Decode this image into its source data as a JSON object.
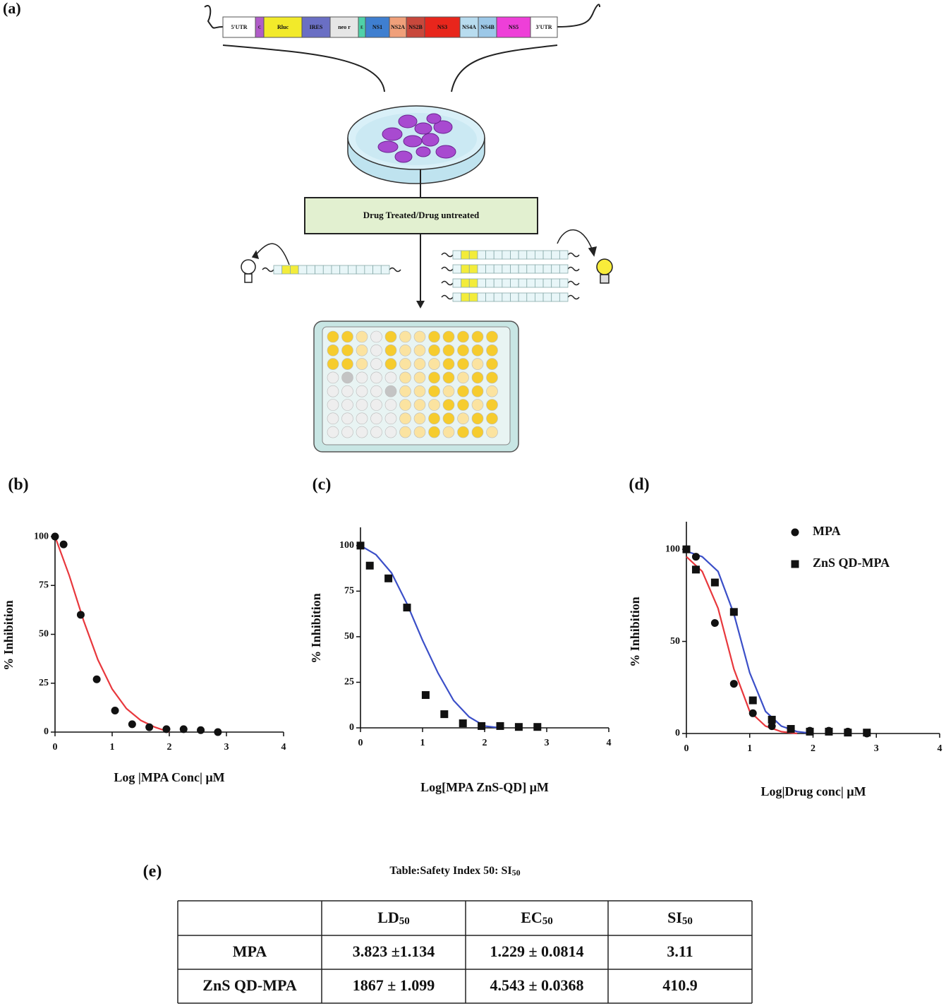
{
  "diagram": {
    "label": "(a)",
    "segments": [
      {
        "label": "5'UTR",
        "color": "#ffffff"
      },
      {
        "label": "C",
        "color": "#b05cc8"
      },
      {
        "label": "Rluc",
        "color": "#f2ea2a"
      },
      {
        "label": "IRES",
        "color": "#6a6fc4"
      },
      {
        "label": "neo r",
        "color": "#e6e6e6"
      },
      {
        "label": "E",
        "color": "#4fd1a8"
      },
      {
        "label": "NS1",
        "color": "#3f7fd0"
      },
      {
        "label": "NS2A",
        "color": "#f0a07a"
      },
      {
        "label": "NS2B",
        "color": "#c8483c"
      },
      {
        "label": "NS3",
        "color": "#e8261c"
      },
      {
        "label": "NS4A",
        "color": "#b8dcef"
      },
      {
        "label": "NS4B",
        "color": "#9cc8e8"
      },
      {
        "label": "NS5",
        "color": "#ee3fd8"
      },
      {
        "label": "3'UTR",
        "color": "#ffffff"
      }
    ],
    "box": "Drug Treated/Drug untreated"
  },
  "chart_data": [
    {
      "type": "scatter",
      "label": "(b)",
      "xlabel": "Log |MPA Conc| μM",
      "ylabel": "% Inhibition",
      "x": [
        0,
        0.15,
        0.45,
        0.73,
        1.05,
        1.35,
        1.65,
        1.95,
        2.25,
        2.55,
        2.85
      ],
      "series": [
        {
          "color": "#111111",
          "marker": "circle",
          "values": [
            100,
            96,
            60,
            27,
            11,
            4,
            2.5,
            1.5,
            1.5,
            1,
            0
          ]
        }
      ],
      "fits": [
        {
          "color": "#e8383d",
          "x": [
            0,
            0.25,
            0.5,
            0.75,
            1,
            1.25,
            1.5,
            1.75,
            2
          ],
          "values": [
            100,
            80,
            57,
            37,
            22,
            12,
            6,
            2.5,
            0
          ]
        }
      ],
      "xlim": [
        0,
        4
      ],
      "xticks": [
        0,
        1,
        2,
        3,
        4
      ],
      "ylim": [
        0,
        102
      ],
      "yticks": [
        0,
        25,
        50,
        75,
        100
      ]
    },
    {
      "type": "scatter",
      "label": "(c)",
      "xlabel": "Log[MPA ZnS-QD] μM",
      "ylabel": "% Inhibition",
      "x": [
        0,
        0.15,
        0.45,
        0.75,
        1.05,
        1.35,
        1.65,
        1.95,
        2.25,
        2.55,
        2.85
      ],
      "series": [
        {
          "color": "#111111",
          "marker": "square",
          "values": [
            100,
            89,
            82,
            66,
            18,
            7.5,
            2.5,
            1,
            1,
            0.5,
            0.5
          ]
        }
      ],
      "fits": [
        {
          "color": "#3b4fc8",
          "x": [
            0,
            0.25,
            0.5,
            0.75,
            1,
            1.25,
            1.5,
            1.75,
            2,
            2.25
          ],
          "values": [
            100,
            95,
            85,
            68,
            48,
            30,
            15,
            6,
            1,
            0
          ]
        }
      ],
      "xlim": [
        0,
        4
      ],
      "xticks": [
        0,
        1,
        2,
        3,
        4
      ],
      "ylim": [
        0,
        110
      ],
      "yticks": [
        0,
        25,
        50,
        75,
        100
      ]
    },
    {
      "type": "scatter",
      "label": "(d)",
      "xlabel": "Log|Drug conc| μM",
      "ylabel": "% Inhibition",
      "legend": "upper right",
      "x": [
        0,
        0.15,
        0.45,
        0.75,
        1.05,
        1.35,
        1.65,
        1.95,
        2.25,
        2.55,
        2.85
      ],
      "series": [
        {
          "name": "MPA",
          "color": "#111111",
          "marker": "circle",
          "values": [
            100,
            96,
            60,
            27,
            11,
            4,
            2.5,
            1.5,
            1.5,
            1,
            0
          ]
        },
        {
          "name": "ZnS QD-MPA",
          "color": "#111111",
          "marker": "square",
          "values": [
            100,
            89,
            82,
            66,
            18,
            7.5,
            2.5,
            1,
            1,
            0.5,
            0.5
          ]
        }
      ],
      "fits": [
        {
          "color": "#e8383d",
          "x": [
            0,
            0.25,
            0.5,
            0.75,
            1,
            1.25,
            1.5,
            1.75
          ],
          "values": [
            96,
            88,
            68,
            35,
            12,
            4,
            1,
            0
          ]
        },
        {
          "color": "#3b4fc8",
          "x": [
            0,
            0.25,
            0.5,
            0.75,
            1,
            1.25,
            1.5,
            1.75,
            2
          ],
          "values": [
            99,
            96,
            88,
            65,
            33,
            12,
            4,
            1,
            0
          ]
        }
      ],
      "xlim": [
        0,
        4
      ],
      "xticks": [
        0,
        1,
        2,
        3,
        4
      ],
      "ylim": [
        0,
        115
      ],
      "yticks": [
        0,
        50,
        100
      ]
    }
  ],
  "table": {
    "label": "(e)",
    "title": "Table:Safety Index 50: SI",
    "title_sub": "50",
    "header": [
      {
        "text": "LD",
        "sub": "50"
      },
      {
        "text": "EC",
        "sub": "50"
      },
      {
        "text": "SI",
        "sub": "50"
      }
    ],
    "rows": [
      [
        "MPA",
        "3.823 ±1.134",
        "1.229 ± 0.0814",
        "3.11"
      ],
      [
        "ZnS QD-MPA",
        "1867 ± 1.099",
        "4.543 ± 0.0368",
        "410.9"
      ]
    ]
  }
}
